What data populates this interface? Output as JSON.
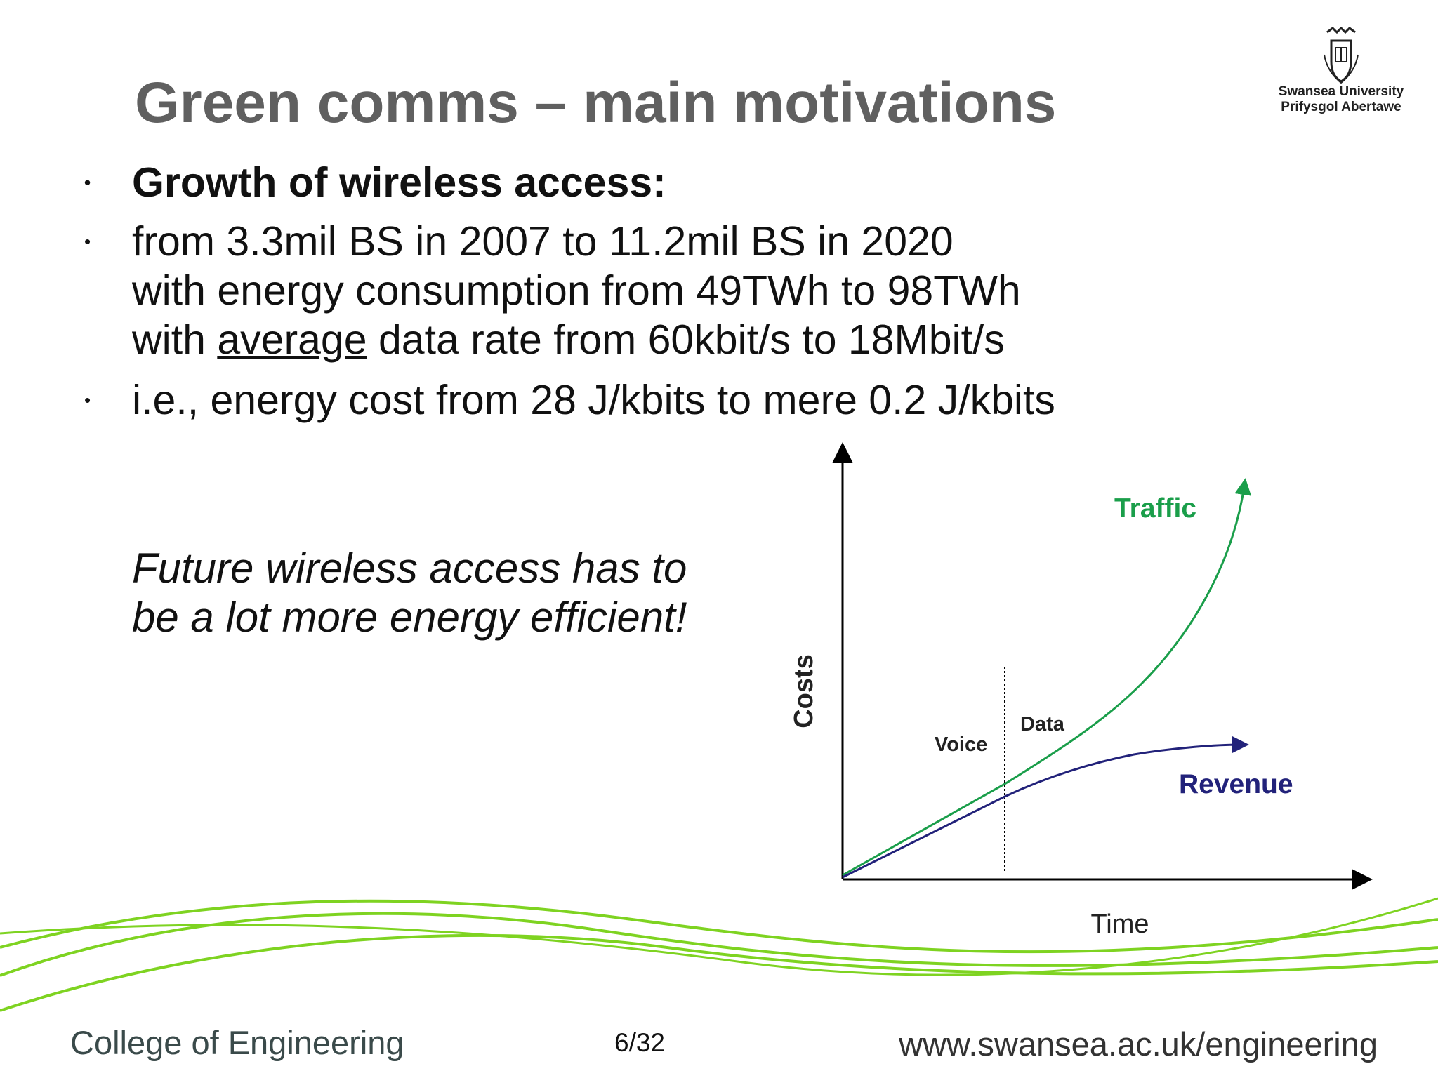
{
  "slide": {
    "title": "Green comms – main motivations",
    "page_number": "6/32"
  },
  "logo": {
    "name_en": "Swansea University",
    "name_cy": "Prifysgol Abertawe",
    "icon": "university-crest-icon"
  },
  "bullets": {
    "b1": "Growth of wireless access:",
    "b2_line1": "from 3.3mil BS in 2007 to 11.2mil BS in 2020",
    "b2_line2": "with energy consumption from 49TWh to 98TWh",
    "b2_line3_pre": "with ",
    "b2_line3_ul": "average",
    "b2_line3_post": " data rate from 60kbit/s to 18Mbit/s",
    "b3": "i.e., energy cost from 28 J/kbits to mere 0.2 J/kbits"
  },
  "note": {
    "line1": "Future wireless access has to",
    "line2": "be a lot more energy efficient!"
  },
  "chart_data": {
    "type": "line",
    "title": "",
    "xlabel": "Time",
    "ylabel": "Costs",
    "regions": [
      "Voice",
      "Data"
    ],
    "series": [
      {
        "name": "Traffic",
        "color": "#1a9e4a"
      },
      {
        "name": "Revenue",
        "color": "#22227a"
      }
    ]
  },
  "footer": {
    "college": "College of Engineering",
    "url": "www.swansea.ac.uk/engineering"
  },
  "colors": {
    "title": "#606060",
    "traffic": "#1a9e4a",
    "revenue": "#22227a",
    "wave": "#7ed321"
  }
}
